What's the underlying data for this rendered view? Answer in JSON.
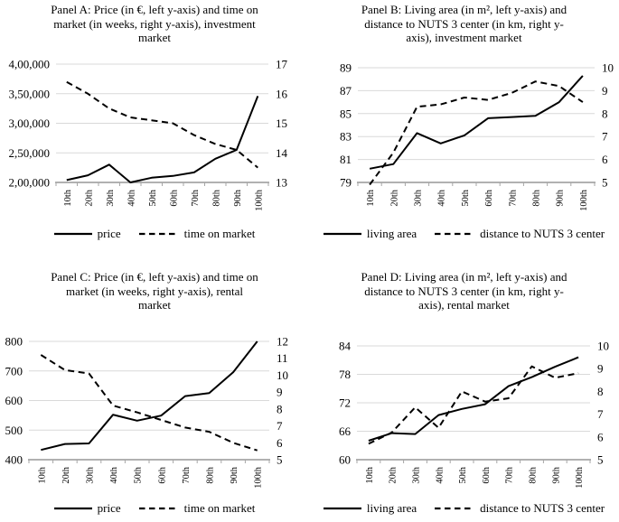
{
  "colors": {
    "line": "#000000",
    "gridline": "#d9d9d9",
    "axis": "#a6a6a6",
    "text": "#000000",
    "background": "#ffffff"
  },
  "chart_data": [
    {
      "id": "panel-a",
      "type": "line",
      "title_lines": [
        "Panel A: Price (in €, left y-axis) and time on",
        "market (in weeks, right y-axis), investment",
        "market"
      ],
      "categories": [
        "10th",
        "20th",
        "30th",
        "40th",
        "50th",
        "60th",
        "70th",
        "80th",
        "90th",
        "100th"
      ],
      "left_axis": {
        "label": "Price (in €)",
        "min": 200000,
        "max": 400000,
        "tick_values": [
          200000,
          250000,
          300000,
          350000,
          400000
        ],
        "tick_labels": [
          "2,00,000",
          "2,50,000",
          "3,00,000",
          "3,50,000",
          "4,00,000"
        ]
      },
      "right_axis": {
        "label": "time on market (in weeks)",
        "min": 13,
        "max": 17,
        "tick_values": [
          13,
          14,
          15,
          16,
          17
        ],
        "tick_labels": [
          "13",
          "14",
          "15",
          "16",
          "17"
        ]
      },
      "grid": true,
      "legend_position": "bottom",
      "series": [
        {
          "name": "price",
          "axis": "left",
          "line_style": "solid",
          "values": [
            204000,
            212000,
            230000,
            200000,
            208000,
            211000,
            217000,
            240000,
            255000,
            346000
          ]
        },
        {
          "name": "time on market",
          "axis": "right",
          "line_style": "dashed",
          "values": [
            16.4,
            16.0,
            15.5,
            15.2,
            15.1,
            15.0,
            14.6,
            14.3,
            14.1,
            13.5
          ]
        }
      ]
    },
    {
      "id": "panel-b",
      "type": "line",
      "title_lines": [
        "Panel B: Living area (in m², left y-axis) and",
        "distance to NUTS 3 center (in km, right y-",
        "axis), investment market"
      ],
      "categories": [
        "10th",
        "20th",
        "30th",
        "40th",
        "50th",
        "60th",
        "70th",
        "80th",
        "90th",
        "100th"
      ],
      "left_axis": {
        "label": "Living area (in m²)",
        "min": 79,
        "max": 89,
        "tick_values": [
          79,
          81,
          83,
          85,
          87,
          89
        ],
        "tick_labels": [
          "79",
          "81",
          "83",
          "85",
          "87",
          "89"
        ]
      },
      "right_axis": {
        "label": "distance to NUTS 3 center (in km)",
        "min": 5,
        "max": 10,
        "tick_values": [
          5,
          6,
          7,
          8,
          9,
          10
        ],
        "tick_labels": [
          "5",
          "6",
          "7",
          "8",
          "9",
          "10"
        ]
      },
      "grid": true,
      "legend_position": "bottom",
      "series": [
        {
          "name": "living area",
          "axis": "left",
          "line_style": "solid",
          "values": [
            80.2,
            80.6,
            83.3,
            82.4,
            83.1,
            84.6,
            84.7,
            84.8,
            86.0,
            88.3
          ]
        },
        {
          "name": "distance to NUTS 3 center",
          "axis": "right",
          "line_style": "dashed",
          "values": [
            4.9,
            6.3,
            8.3,
            8.4,
            8.7,
            8.6,
            8.9,
            9.4,
            9.2,
            8.5
          ]
        }
      ]
    },
    {
      "id": "panel-c",
      "type": "line",
      "title_lines": [
        "Panel C: Price (in €, left y-axis) and time on",
        "market (in weeks, right y-axis), rental",
        "market"
      ],
      "categories": [
        "10th",
        "20th",
        "30th",
        "40th",
        "50th",
        "60th",
        "70th",
        "80th",
        "90th",
        "100th"
      ],
      "left_axis": {
        "label": "Price (in €)",
        "min": 400,
        "max": 800,
        "tick_values": [
          400,
          500,
          600,
          700,
          800
        ],
        "tick_labels": [
          "400",
          "500",
          "600",
          "700",
          "800"
        ]
      },
      "right_axis": {
        "label": "time on market (in weeks)",
        "min": 5,
        "max": 12,
        "tick_values": [
          5,
          6,
          7,
          8,
          9,
          10,
          11,
          12
        ],
        "tick_labels": [
          "5",
          "6",
          "7",
          "8",
          "9",
          "10",
          "11",
          "12"
        ]
      },
      "grid": true,
      "legend_position": "bottom",
      "series": [
        {
          "name": "price",
          "axis": "left",
          "line_style": "solid",
          "values": [
            433,
            453,
            455,
            552,
            532,
            549,
            615,
            625,
            696,
            800
          ]
        },
        {
          "name": "time on market",
          "axis": "right",
          "line_style": "dashed",
          "values": [
            11.2,
            10.3,
            10.1,
            8.2,
            7.8,
            7.35,
            6.9,
            6.65,
            6.0,
            5.55
          ]
        }
      ]
    },
    {
      "id": "panel-d",
      "type": "line",
      "title_lines": [
        "Panel D: Living area (in m², left y-axis) and",
        "distance to NUTS 3 center (in km, right y-",
        "axis), rental market"
      ],
      "categories": [
        "10th",
        "20th",
        "30th",
        "40th",
        "50th",
        "60th",
        "70th",
        "80th",
        "90th",
        "100th"
      ],
      "left_axis": {
        "label": "Living area (in m²)",
        "min": 60,
        "max": 84,
        "tick_values": [
          60,
          66,
          72,
          78,
          84
        ],
        "tick_labels": [
          "60",
          "66",
          "72",
          "78",
          "84"
        ]
      },
      "right_axis": {
        "label": "distance to NUTS 3 center (in km)",
        "min": 5,
        "max": 10,
        "tick_values": [
          5,
          6,
          7,
          8,
          9,
          10
        ],
        "tick_labels": [
          "5",
          "6",
          "7",
          "8",
          "9",
          "10"
        ]
      },
      "grid": true,
      "legend_position": "bottom",
      "series": [
        {
          "name": "living area",
          "axis": "left",
          "line_style": "solid",
          "values": [
            64.0,
            65.6,
            65.4,
            69.4,
            70.7,
            71.7,
            75.5,
            77.4,
            79.6,
            81.6
          ]
        },
        {
          "name": "distance to NUTS 3 center",
          "axis": "right",
          "line_style": "dashed",
          "values": [
            5.7,
            6.2,
            7.3,
            6.4,
            8.0,
            7.55,
            7.7,
            9.1,
            8.6,
            8.8
          ]
        }
      ]
    }
  ]
}
